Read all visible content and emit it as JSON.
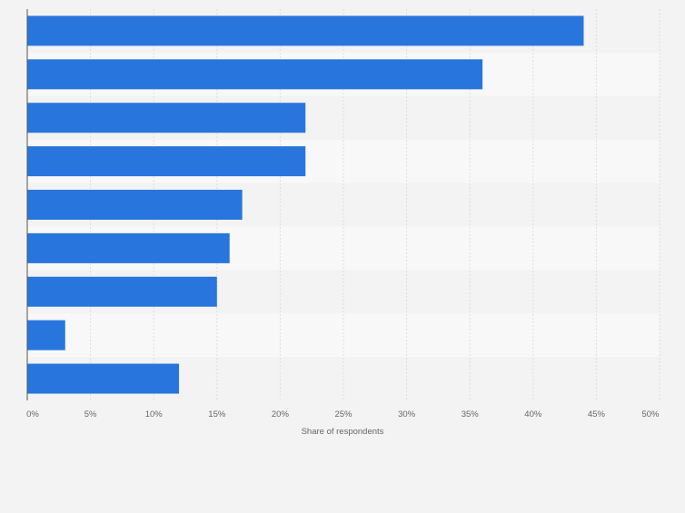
{
  "chart_data": {
    "type": "bar",
    "orientation": "horizontal",
    "categories": [
      "",
      "",
      "",
      "",
      "",
      "",
      "",
      "",
      ""
    ],
    "values": [
      44,
      36,
      22,
      22,
      17,
      16,
      15,
      3,
      12
    ],
    "xlabel": "Share of respondents",
    "xlim": [
      0,
      50
    ],
    "xticks": [
      "0%",
      "5%",
      "10%",
      "15%",
      "20%",
      "25%",
      "30%",
      "35%",
      "40%",
      "45%",
      "50%"
    ],
    "grid": true,
    "colors": {
      "bar": "#2876dd",
      "band_light": "#f8f8f8",
      "band_dark": "#f3f3f3",
      "grid": "#dedede",
      "axis": "#555555",
      "tick_text": "#666666"
    }
  }
}
